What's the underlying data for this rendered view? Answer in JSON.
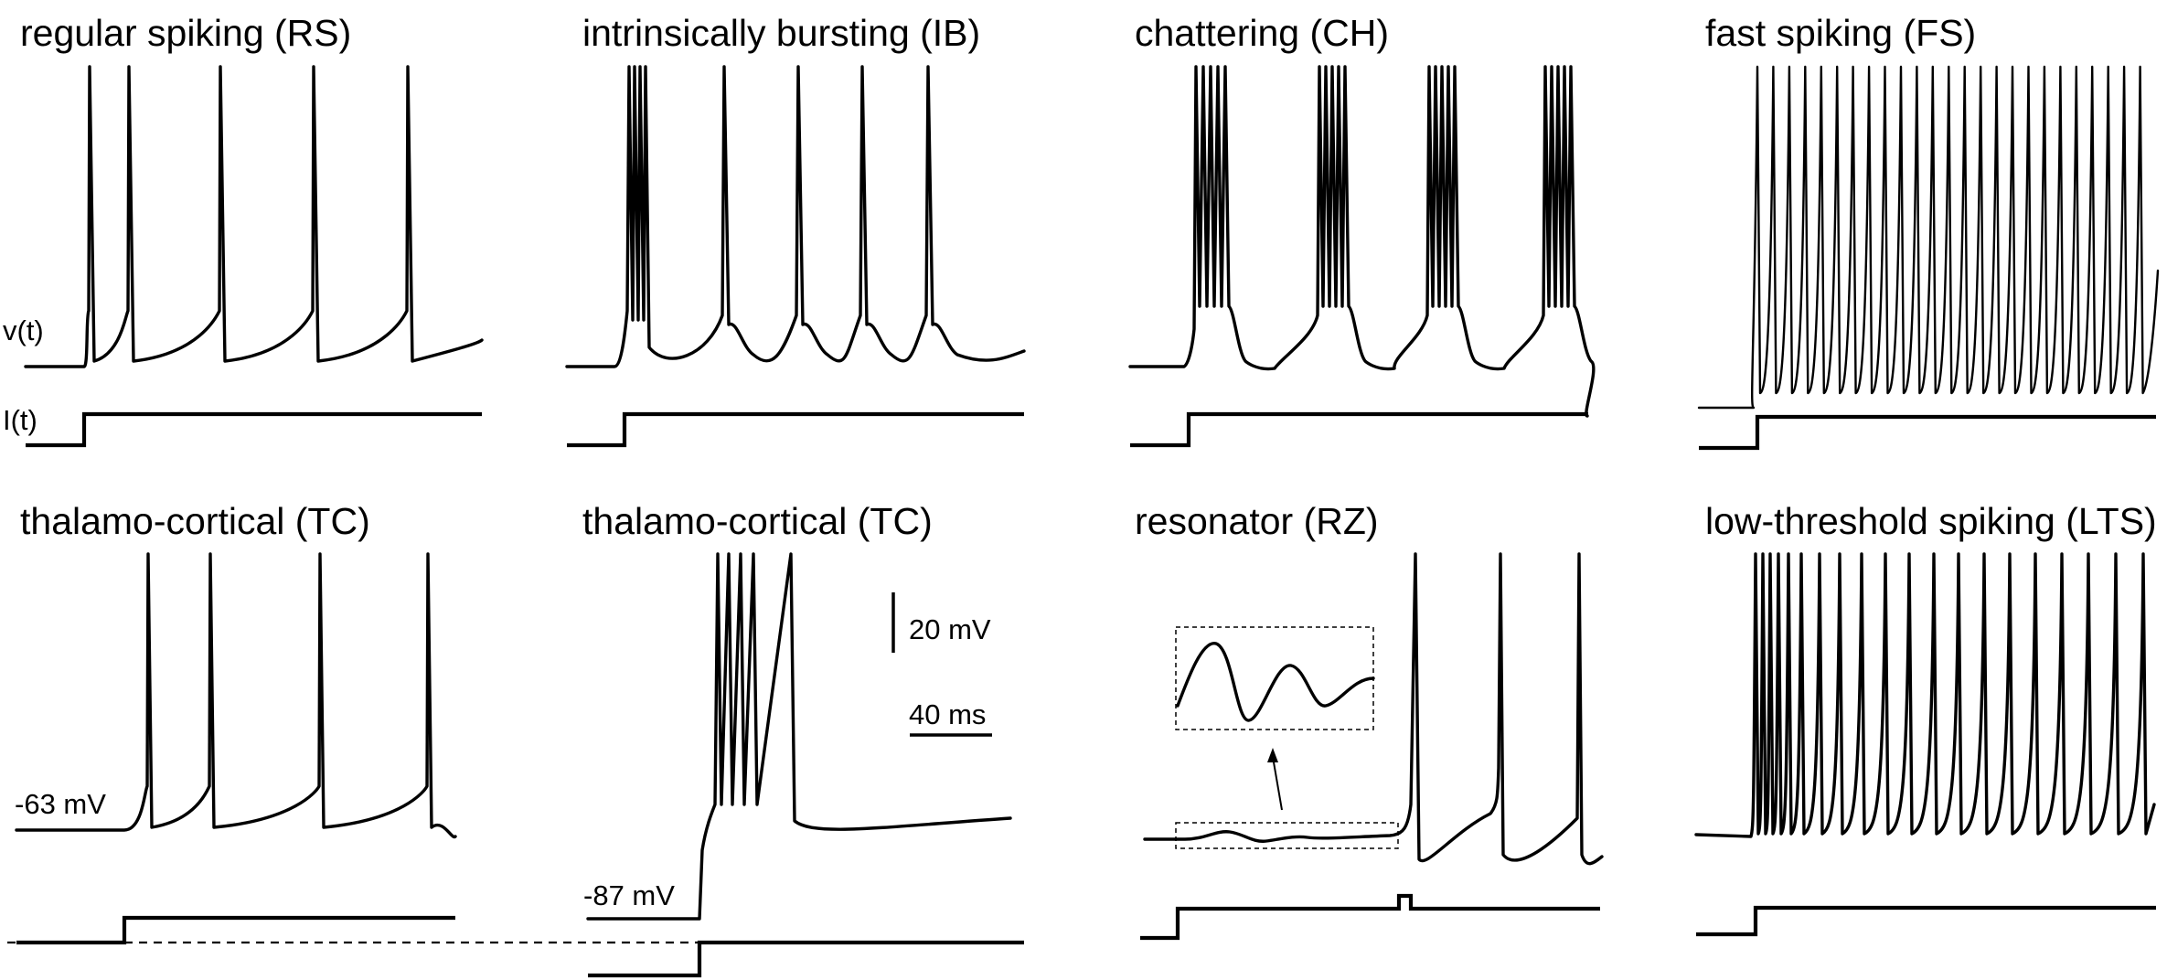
{
  "panels": [
    {
      "title": "regular spiking (RS)"
    },
    {
      "title": "intrinsically bursting (IB)"
    },
    {
      "title": "chattering (CH)"
    },
    {
      "title": "fast spiking (FS)"
    },
    {
      "title": "thalamo-cortical (TC)"
    },
    {
      "title": "thalamo-cortical (TC)"
    },
    {
      "title": "resonator (RZ)"
    },
    {
      "title": "low-threshold spiking (LTS)"
    }
  ],
  "labels": {
    "voltage": "v(t)",
    "current": "I(t)",
    "tc_rest_1": "-63 mV",
    "tc_rest_2": "-87 mV"
  },
  "scale_bars": {
    "voltage": "20 mV",
    "time": "40 ms"
  }
}
